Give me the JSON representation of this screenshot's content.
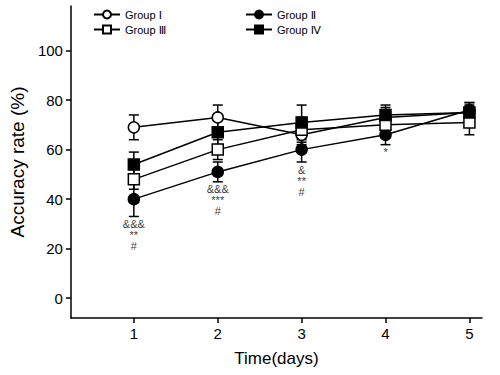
{
  "chart_data": {
    "type": "line",
    "x_label": "Time(days)",
    "y_label": "Accuracy rate (%)",
    "x": [
      1,
      2,
      3,
      4,
      5
    ],
    "xlim": [
      0.25,
      5.15
    ],
    "xticks": [
      1,
      2,
      3,
      4,
      5
    ],
    "ylim": [
      -8,
      118
    ],
    "yticks": [
      0,
      20,
      40,
      60,
      80,
      100
    ],
    "grid": false,
    "legend": "upper left",
    "series": [
      {
        "name": "Group Ⅰ",
        "color": "#000000",
        "marker": "open-circle",
        "values": [
          69,
          73,
          66,
          73,
          75
        ],
        "errors": [
          5,
          5,
          4,
          4,
          3
        ]
      },
      {
        "name": "Group Ⅱ",
        "color": "#000000",
        "marker": "circle",
        "values": [
          40,
          51,
          60,
          66,
          76
        ],
        "errors": [
          7,
          4,
          5,
          4,
          3
        ]
      },
      {
        "name": "Group Ⅲ",
        "color": "#000000",
        "marker": "open-square",
        "values": [
          48,
          60,
          68,
          70,
          71
        ],
        "errors": [
          4,
          4,
          5,
          4,
          5
        ]
      },
      {
        "name": "Group Ⅳ",
        "color": "#000000",
        "marker": "square",
        "values": [
          54,
          67,
          71,
          74,
          75
        ],
        "errors": [
          5,
          5,
          7,
          4,
          4
        ]
      }
    ],
    "annotations": [
      {
        "x": 1,
        "lines": [
          "&&&",
          "**",
          "#"
        ]
      },
      {
        "x": 2,
        "lines": [
          "&&&",
          "***",
          "#"
        ]
      },
      {
        "x": 3,
        "lines": [
          "&",
          "**",
          "#"
        ]
      },
      {
        "x": 4,
        "lines": [
          "*"
        ]
      }
    ]
  }
}
